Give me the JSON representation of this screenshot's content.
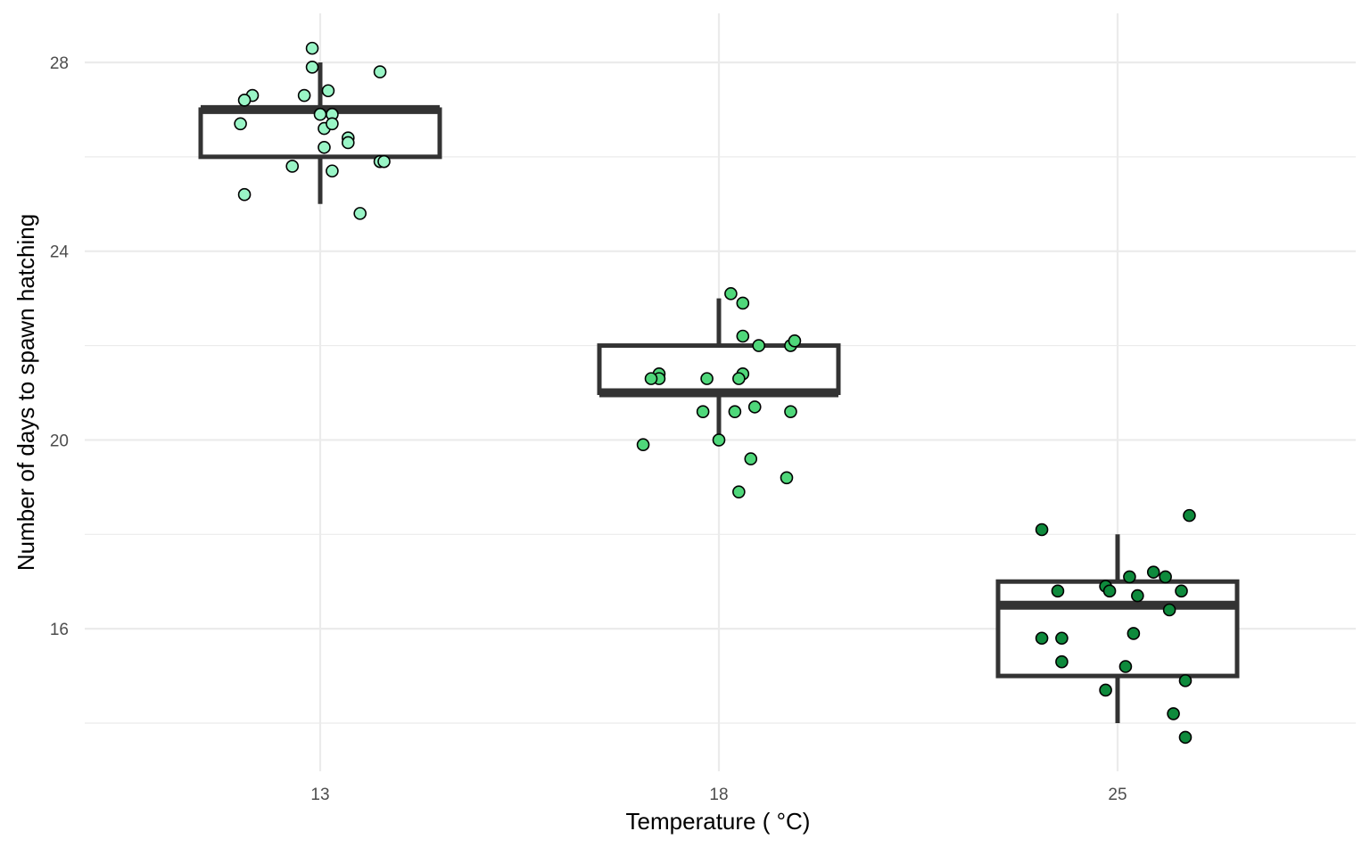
{
  "chart_data": {
    "type": "boxplot",
    "title": "",
    "xlabel": "Temperature ( °C)",
    "ylabel": "Number of days to spawn hatching",
    "categories": [
      "13",
      "18",
      "25"
    ],
    "ylim": [
      13.0,
      29.0
    ],
    "y_ticks": [
      16,
      20,
      24,
      28
    ],
    "y_tick_labels": [
      "16",
      "20",
      "24",
      "28"
    ],
    "y_minor_ticks": [
      14,
      18,
      22,
      26
    ],
    "grid": true,
    "legend": "none",
    "colors": [
      "#99f5c6",
      "#4fd77a",
      "#0e8a3c"
    ],
    "box_stats": [
      {
        "category": "13",
        "whisker_low": 25,
        "q1": 26,
        "median": 27,
        "q3": 27,
        "whisker_high": 28
      },
      {
        "category": "18",
        "whisker_low": 20,
        "q1": 21,
        "median": 21,
        "q3": 22,
        "whisker_high": 23
      },
      {
        "category": "25",
        "whisker_low": 14,
        "q1": 15,
        "median": 16.5,
        "q3": 17,
        "whisker_high": 18
      }
    ],
    "points": [
      {
        "category": "13",
        "values": [
          28.3,
          27.9,
          27.8,
          27.3,
          27.2,
          27.3,
          27.4,
          26.9,
          26.9,
          26.7,
          26.6,
          26.7,
          26.4,
          26.3,
          26.2,
          25.8,
          25.9,
          25.9,
          25.7,
          25.2,
          24.8
        ],
        "jitter": [
          -0.02,
          -0.02,
          0.15,
          -0.17,
          -0.19,
          -0.04,
          0.02,
          0.03,
          0.0,
          -0.2,
          0.01,
          0.03,
          0.07,
          0.07,
          0.01,
          -0.07,
          0.15,
          0.16,
          0.03,
          -0.19,
          0.1
        ]
      },
      {
        "category": "18",
        "values": [
          23.1,
          22.9,
          22.2,
          22.0,
          22.0,
          22.1,
          21.4,
          21.3,
          21.3,
          21.3,
          21.4,
          21.3,
          20.6,
          20.6,
          20.7,
          20.6,
          20.0,
          19.9,
          19.6,
          19.2,
          18.9
        ],
        "jitter": [
          0.03,
          0.06,
          0.06,
          0.1,
          0.18,
          0.19,
          -0.15,
          -0.15,
          -0.17,
          -0.03,
          0.06,
          0.05,
          -0.04,
          0.04,
          0.09,
          0.18,
          0.0,
          -0.19,
          0.08,
          0.17,
          0.05
        ]
      },
      {
        "category": "25",
        "values": [
          18.4,
          18.1,
          17.2,
          17.1,
          17.1,
          16.8,
          16.9,
          16.8,
          16.7,
          16.8,
          16.4,
          15.8,
          15.8,
          15.9,
          15.3,
          15.2,
          14.9,
          14.7,
          14.2,
          13.7
        ],
        "jitter": [
          0.18,
          -0.19,
          0.09,
          0.03,
          0.12,
          -0.15,
          -0.03,
          -0.02,
          0.05,
          0.16,
          0.13,
          -0.19,
          -0.14,
          0.04,
          -0.14,
          0.02,
          0.17,
          -0.03,
          0.14,
          0.17
        ]
      }
    ]
  }
}
